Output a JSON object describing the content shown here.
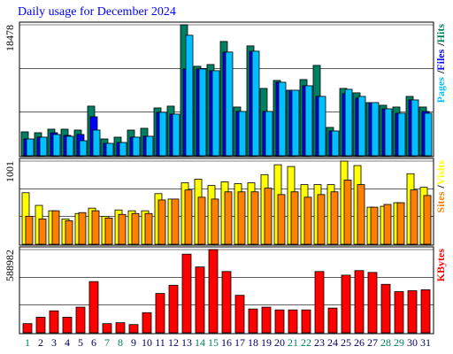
{
  "title": "Daily usage for December 2024",
  "title_color": "#0000ff",
  "legend_separator": "/",
  "chart_data": [
    {
      "type": "bar",
      "ylim": [
        0,
        18478
      ],
      "yticks": [
        18478
      ],
      "series": [
        {
          "name": "Hits",
          "color": "#008060",
          "values": [
            3375,
            3250,
            3750,
            3750,
            3625,
            7000,
            2375,
            2625,
            3625,
            3875,
            6750,
            7000,
            18478,
            12625,
            12875,
            16125,
            6875,
            15500,
            9500,
            10625,
            9250,
            10750,
            12750,
            4000,
            9500,
            8875,
            7500,
            7125,
            6875,
            8375,
            6875
          ]
        },
        {
          "name": "Files",
          "color": "#0000ff",
          "values": [
            2375,
            2625,
            3250,
            2875,
            3000,
            5500,
            1750,
            1875,
            2625,
            2750,
            6125,
            5875,
            12250,
            12250,
            12000,
            14625,
            6250,
            14750,
            6250,
            10375,
            9250,
            9875,
            8375,
            3500,
            8750,
            8125,
            7500,
            6625,
            6000,
            7875,
            6250
          ]
        },
        {
          "name": "Pages",
          "color": "#00c0ff",
          "values": [
            2375,
            2625,
            3000,
            2750,
            2125,
            3625,
            1750,
            1875,
            2625,
            2750,
            6125,
            5875,
            17000,
            12250,
            12000,
            14625,
            6250,
            14750,
            6250,
            10375,
            9250,
            9875,
            8375,
            3500,
            9375,
            8375,
            7500,
            6625,
            6000,
            7875,
            6000
          ]
        }
      ]
    },
    {
      "type": "bar",
      "ylim": [
        0,
        1001
      ],
      "yticks": [
        1001
      ],
      "series": [
        {
          "name": "Visits",
          "color": "#ffff00",
          "values": [
            620,
            468,
            403,
            305,
            370,
            435,
            337,
            413,
            403,
            403,
            609,
            544,
            740,
            783,
            707,
            751,
            729,
            740,
            838,
            957,
            936,
            718,
            718,
            718,
            1001,
            947,
            446,
            457,
            500,
            849,
            685
          ]
        },
        {
          "name": "Sites",
          "color": "#ff8000",
          "values": [
            337,
            305,
            403,
            283,
            381,
            403,
            316,
            359,
            370,
            370,
            533,
            544,
            653,
            566,
            544,
            631,
            631,
            631,
            675,
            598,
            631,
            566,
            598,
            631,
            772,
            718,
            446,
            479,
            500,
            653,
            587
          ]
        }
      ]
    },
    {
      "type": "bar",
      "ylim": [
        0,
        588982
      ],
      "yticks": [
        588982
      ],
      "categories": [
        "1",
        "2",
        "3",
        "4",
        "5",
        "6",
        "7",
        "8",
        "9",
        "10",
        "11",
        "12",
        "13",
        "14",
        "15",
        "16",
        "17",
        "18",
        "19",
        "20",
        "21",
        "22",
        "23",
        "24",
        "25",
        "26",
        "27",
        "28",
        "29",
        "30",
        "31"
      ],
      "category_colors": [
        "#008060",
        "#000060",
        "#000060",
        "#000060",
        "#000060",
        "#000060",
        "#008060",
        "#008060",
        "#000060",
        "#000060",
        "#000060",
        "#000060",
        "#000060",
        "#008060",
        "#008060",
        "#000060",
        "#000060",
        "#000060",
        "#000060",
        "#000060",
        "#008060",
        "#008060",
        "#000060",
        "#000060",
        "#000060",
        "#000060",
        "#000060",
        "#008060",
        "#008060",
        "#000060",
        "#000060"
      ],
      "series": [
        {
          "name": "KBytes",
          "color": "#ff0000",
          "values": [
            64720,
            110024,
            155328,
            110024,
            181216,
            362432,
            64720,
            71192,
            58248,
            142384,
            278296,
            336544,
            556592,
            465984,
            588982,
            433624,
            265352,
            168272,
            181216,
            161800,
            161800,
            161800,
            433624,
            174744,
            407736,
            440096,
            427152,
            343016,
            291240,
            297712,
            304184
          ]
        }
      ]
    }
  ]
}
